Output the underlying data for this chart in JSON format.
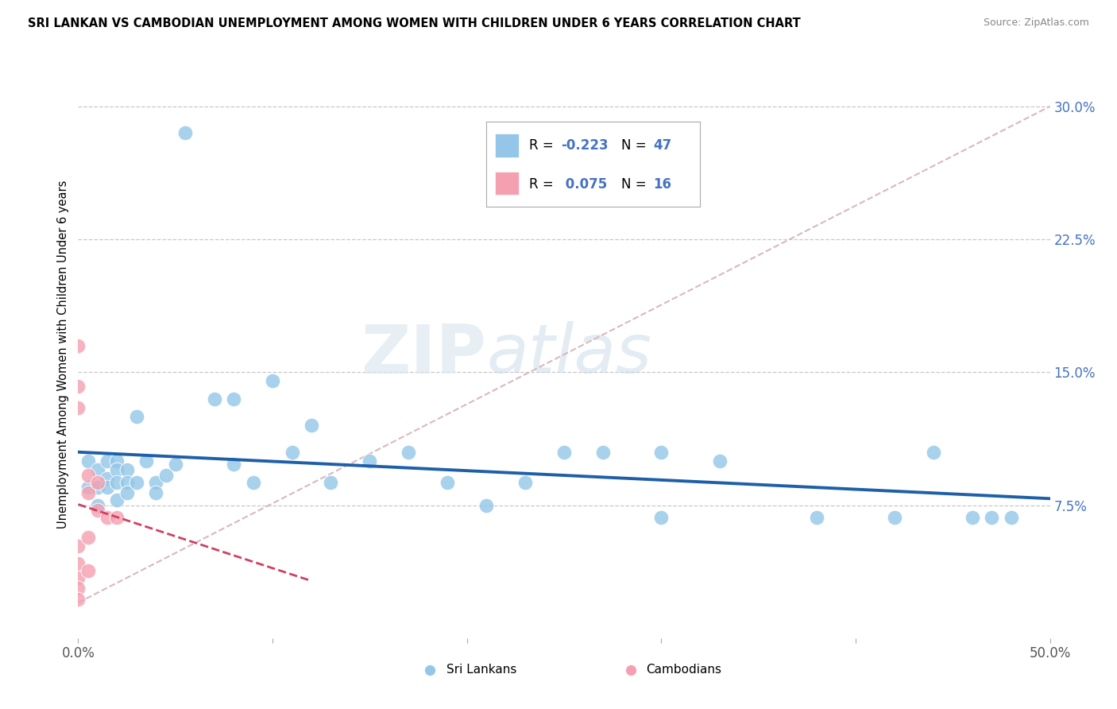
{
  "title": "SRI LANKAN VS CAMBODIAN UNEMPLOYMENT AMONG WOMEN WITH CHILDREN UNDER 6 YEARS CORRELATION CHART",
  "source": "Source: ZipAtlas.com",
  "ylabel": "Unemployment Among Women with Children Under 6 years",
  "xlim": [
    0.0,
    0.5
  ],
  "ylim": [
    0.0,
    0.32
  ],
  "yticks_right": [
    0.0,
    0.075,
    0.15,
    0.225,
    0.3
  ],
  "ytick_labels_right": [
    "",
    "7.5%",
    "15.0%",
    "22.5%",
    "30.0%"
  ],
  "xtick_positions": [
    0.0,
    0.1,
    0.2,
    0.3,
    0.4,
    0.5
  ],
  "xtick_labels": [
    "0.0%",
    "",
    "",
    "",
    "",
    "50.0%"
  ],
  "background_color": "#ffffff",
  "grid_color": "#c8c8c8",
  "sri_lankan_color": "#93c6e8",
  "cambodian_color": "#f4a0b0",
  "sri_lankan_line_color": "#1e5fa8",
  "cambodian_line_color": "#d04060",
  "diagonal_color": "#d8b8c0",
  "legend_sri_r": "-0.223",
  "legend_sri_n": "47",
  "legend_cam_r": "0.075",
  "legend_cam_n": "16",
  "sri_lankans_x": [
    0.005,
    0.005,
    0.01,
    0.01,
    0.01,
    0.015,
    0.015,
    0.015,
    0.02,
    0.02,
    0.02,
    0.02,
    0.025,
    0.025,
    0.025,
    0.03,
    0.03,
    0.035,
    0.04,
    0.04,
    0.045,
    0.05,
    0.055,
    0.07,
    0.08,
    0.08,
    0.09,
    0.1,
    0.11,
    0.12,
    0.13,
    0.15,
    0.17,
    0.19,
    0.21,
    0.23,
    0.25,
    0.27,
    0.3,
    0.3,
    0.33,
    0.38,
    0.42,
    0.44,
    0.46,
    0.47,
    0.48
  ],
  "sri_lankans_y": [
    0.1,
    0.085,
    0.095,
    0.085,
    0.075,
    0.1,
    0.09,
    0.085,
    0.1,
    0.095,
    0.088,
    0.078,
    0.095,
    0.088,
    0.082,
    0.125,
    0.088,
    0.1,
    0.088,
    0.082,
    0.092,
    0.098,
    0.285,
    0.135,
    0.135,
    0.098,
    0.088,
    0.145,
    0.105,
    0.12,
    0.088,
    0.1,
    0.105,
    0.088,
    0.075,
    0.088,
    0.105,
    0.105,
    0.068,
    0.105,
    0.1,
    0.068,
    0.068,
    0.105,
    0.068,
    0.068,
    0.068
  ],
  "cambodians_x": [
    0.0,
    0.0,
    0.0,
    0.0,
    0.0,
    0.0,
    0.0,
    0.0,
    0.005,
    0.005,
    0.005,
    0.005,
    0.01,
    0.01,
    0.015,
    0.02
  ],
  "cambodians_y": [
    0.165,
    0.142,
    0.13,
    0.052,
    0.042,
    0.034,
    0.028,
    0.022,
    0.092,
    0.082,
    0.057,
    0.038,
    0.088,
    0.072,
    0.068,
    0.068
  ],
  "watermark_text": "ZIP",
  "watermark_text2": "atlas",
  "marker_size": 180
}
